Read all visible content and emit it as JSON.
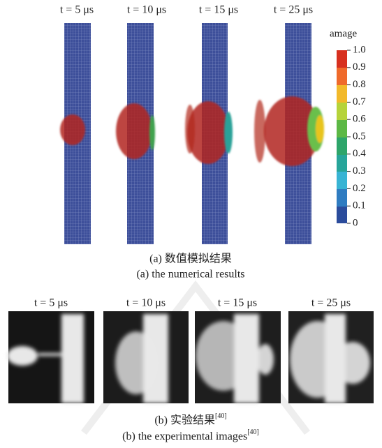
{
  "panel_a": {
    "time_labels": [
      "t = 5 μs",
      "t = 10 μs",
      "t = 15 μs",
      "t = 25 μs"
    ],
    "colorbar": {
      "title": "amage",
      "ticks": [
        "1.0",
        "0.9",
        "0.8",
        "0.7",
        "0.6",
        "0.5",
        "0.4",
        "0.3",
        "0.2",
        "0.1",
        "0"
      ]
    },
    "caption_zh": "(a) 数值模拟结果",
    "caption_en": "(a) the numerical results"
  },
  "panel_b": {
    "time_labels": [
      "t = 5 μs",
      "t = 10 μs",
      "t = 15 μs",
      "t = 25 μs"
    ],
    "caption_zh": {
      "text": "(b) 实验结果",
      "ref": "[40]"
    },
    "caption_en": {
      "text": "(b) the experimental images",
      "ref": "[40]"
    }
  }
}
